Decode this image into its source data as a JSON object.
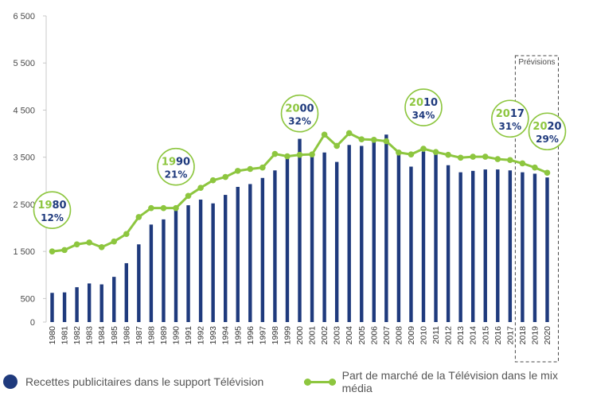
{
  "chart_data": {
    "type": "bar",
    "categories": [
      "1980",
      "1981",
      "1982",
      "1983",
      "1984",
      "1985",
      "1986",
      "1987",
      "1988",
      "1989",
      "1990",
      "1991",
      "1992",
      "1993",
      "1994",
      "1995",
      "1996",
      "1997",
      "1998",
      "1999",
      "2000",
      "2001",
      "2002",
      "2003",
      "2004",
      "2005",
      "2006",
      "2007",
      "2008",
      "2009",
      "2010",
      "2011",
      "2012",
      "2013",
      "2014",
      "2015",
      "2016",
      "2017",
      "2018",
      "2019",
      "2020"
    ],
    "series": [
      {
        "name": "Recettes publicitaires dans le support Télévision",
        "type": "bar",
        "color": "#1f3a7d",
        "values": [
          620,
          630,
          740,
          820,
          800,
          960,
          1250,
          1650,
          2070,
          2180,
          2430,
          2480,
          2600,
          2520,
          2700,
          2870,
          2930,
          3060,
          3220,
          3570,
          3890,
          3580,
          3600,
          3400,
          3760,
          3740,
          3920,
          3980,
          3570,
          3300,
          3620,
          3560,
          3330,
          3180,
          3210,
          3240,
          3240,
          3220,
          3180,
          3150,
          3070
        ]
      },
      {
        "name": "Part de marché de la Télévision dans le mix média",
        "type": "line",
        "color": "#8dc63f",
        "values": [
          1500,
          1530,
          1650,
          1690,
          1590,
          1710,
          1870,
          2230,
          2420,
          2420,
          2420,
          2680,
          2850,
          3010,
          3080,
          3210,
          3250,
          3280,
          3570,
          3520,
          3550,
          3560,
          3980,
          3740,
          4010,
          3880,
          3870,
          3840,
          3600,
          3560,
          3680,
          3610,
          3550,
          3490,
          3510,
          3510,
          3460,
          3440,
          3370,
          3280,
          3170
        ]
      }
    ],
    "y_ticks": [
      "6 500",
      "5 500",
      "4 500",
      "3 500",
      "2 500",
      "1 500",
      "500",
      "0"
    ],
    "ylim": [
      0,
      6500
    ],
    "callouts": [
      {
        "year": "1980",
        "pct": "12%"
      },
      {
        "year": "1990",
        "pct": "21%"
      },
      {
        "year": "2000",
        "pct": "32%"
      },
      {
        "year": "2010",
        "pct": "34%"
      },
      {
        "year": "2017",
        "pct": "31%"
      },
      {
        "year": "2020",
        "pct": "29%"
      }
    ],
    "forecast_label": "Prévisions",
    "legend_position": "bottom",
    "grid": false
  }
}
